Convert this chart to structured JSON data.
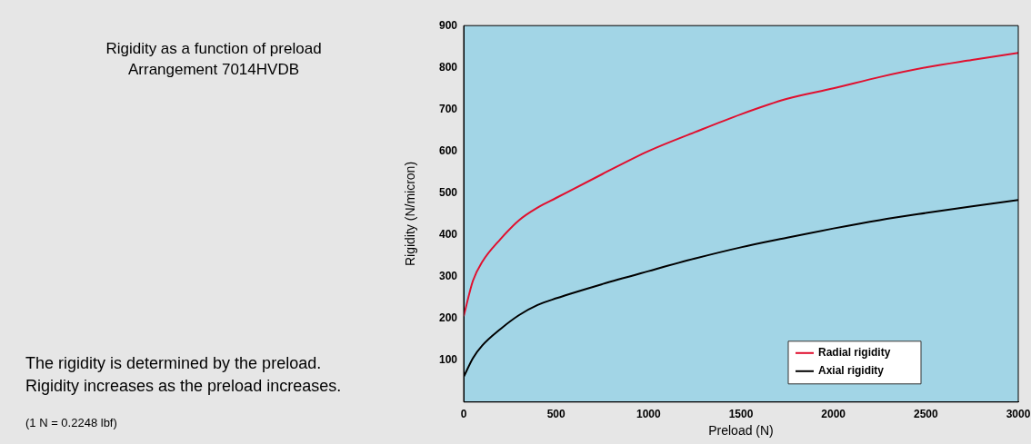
{
  "chart_data": {
    "type": "line",
    "title": "Rigidity as a function of preload\nArrangement 7014HVDB",
    "xlabel": "Preload (N)",
    "ylabel": "Rigidity (N/micron)",
    "annotations": [
      "The rigidity is determined by the preload.\nRigidity increases as the preload increases.",
      "(1 N = 0.2248 lbf)"
    ],
    "x": [
      0,
      50,
      100,
      200,
      300,
      400,
      500,
      750,
      1000,
      1250,
      1500,
      1750,
      2000,
      2250,
      2500,
      2750,
      3000
    ],
    "series": [
      {
        "name": "Radial rigidity",
        "color": "#e0102f",
        "values": [
          205,
          290,
          335,
          390,
          435,
          465,
          488,
          545,
          600,
          645,
          688,
          725,
          750,
          777,
          800,
          818,
          835
        ]
      },
      {
        "name": "Axial rigidity",
        "color": "#000000",
        "values": [
          60,
          105,
          135,
          175,
          208,
          232,
          248,
          282,
          313,
          343,
          370,
          393,
          415,
          435,
          452,
          468,
          483
        ]
      }
    ],
    "xlim": [
      0,
      3000
    ],
    "xticks": [
      0,
      500,
      1000,
      1500,
      2000,
      2500,
      3000
    ],
    "ylim": [
      0,
      900
    ],
    "yticks": [
      100,
      200,
      300,
      400,
      500,
      600,
      700,
      800,
      900
    ],
    "grid": false,
    "legend": "bottom right",
    "marker": "none",
    "line_style": "solid"
  }
}
